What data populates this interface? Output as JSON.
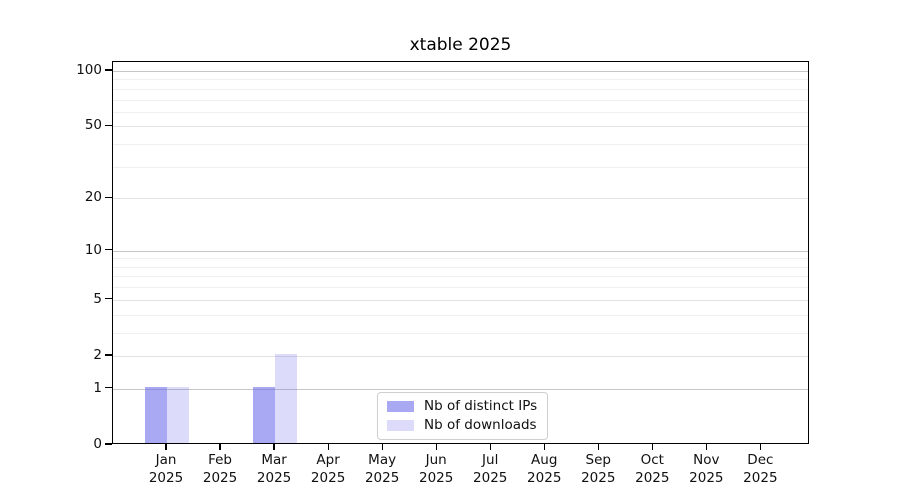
{
  "page": {
    "background": "#ffffff",
    "text_color": "#111111"
  },
  "chart_data": {
    "type": "bar",
    "title": "xtable 2025",
    "categories": [
      "Jan",
      "Feb",
      "Mar",
      "Apr",
      "May",
      "Jun",
      "Jul",
      "Aug",
      "Sep",
      "Oct",
      "Nov",
      "Dec"
    ],
    "category_year": "2025",
    "series": [
      {
        "name": "Nb of distinct IPs",
        "color": "#6b6bea",
        "opacity": 0.58,
        "values": [
          1,
          0,
          1,
          0,
          0,
          0,
          0,
          0,
          0,
          0,
          0,
          0
        ]
      },
      {
        "name": "Nb of downloads",
        "color": "#6b6bea",
        "opacity": 0.24,
        "values": [
          1,
          0,
          2,
          0,
          0,
          0,
          0,
          0,
          0,
          0,
          0,
          0
        ]
      }
    ],
    "xlabel": "",
    "ylabel": "",
    "yscale": "log10(1+y)",
    "ylim": [
      0,
      112
    ],
    "yticks": [
      0,
      1,
      2,
      5,
      10,
      20,
      50,
      100
    ],
    "major_gridline_values": [
      1,
      10,
      100
    ],
    "labeled_gridline_values": [
      2,
      5,
      20,
      50
    ],
    "minor_gridline_values": [
      3,
      4,
      6,
      7,
      8,
      9,
      30,
      40,
      60,
      70,
      80,
      90
    ],
    "grid": true,
    "legend_position": "lower center"
  }
}
